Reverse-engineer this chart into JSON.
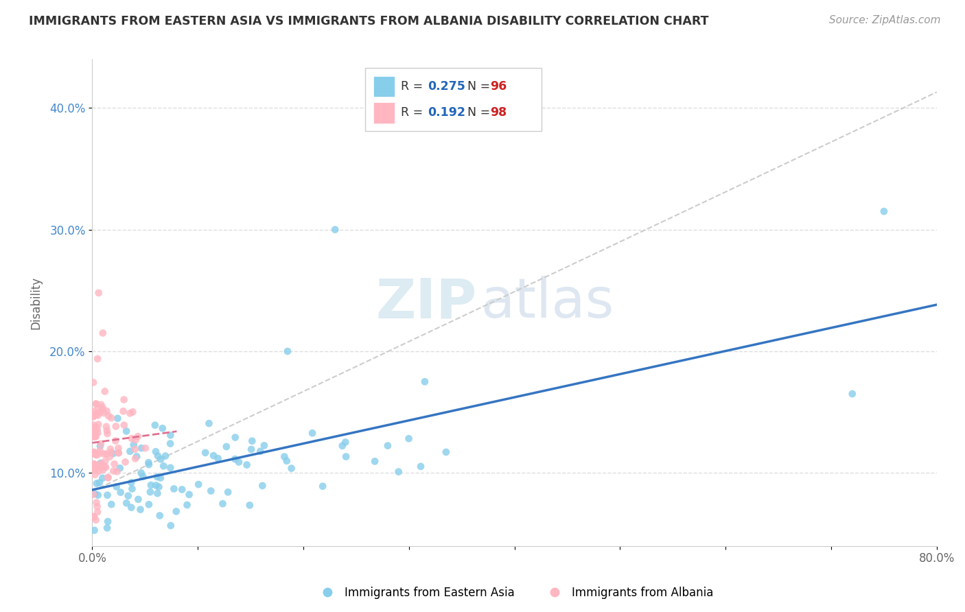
{
  "title": "IMMIGRANTS FROM EASTERN ASIA VS IMMIGRANTS FROM ALBANIA DISABILITY CORRELATION CHART",
  "source": "Source: ZipAtlas.com",
  "ylabel": "Disability",
  "xlim": [
    0.0,
    0.8
  ],
  "ylim": [
    0.04,
    0.44
  ],
  "xtick_values": [
    0.0,
    0.1,
    0.2,
    0.3,
    0.4,
    0.5,
    0.6,
    0.7,
    0.8
  ],
  "xtick_labels": [
    "0.0%",
    "",
    "",
    "",
    "",
    "",
    "",
    "",
    "80.0%"
  ],
  "ytick_values": [
    0.1,
    0.2,
    0.3,
    0.4
  ],
  "ytick_labels": [
    "10.0%",
    "20.0%",
    "30.0%",
    "40.0%"
  ],
  "series1_label": "Immigrants from Eastern Asia",
  "series2_label": "Immigrants from Albania",
  "series1_color": "#87CEEB",
  "series2_color": "#FFB6C1",
  "series1_R": 0.275,
  "series1_N": 96,
  "series2_R": 0.192,
  "series2_N": 98,
  "series1_line_color": "#3575C2",
  "series2_line_color": "#E07090",
  "diag_line_color": "#CCCCCC",
  "legend_R_color": "#2266BB",
  "legend_N_color": "#CC2222",
  "background_color": "#FFFFFF",
  "watermark_zip": "ZIP",
  "watermark_atlas": "atlas"
}
